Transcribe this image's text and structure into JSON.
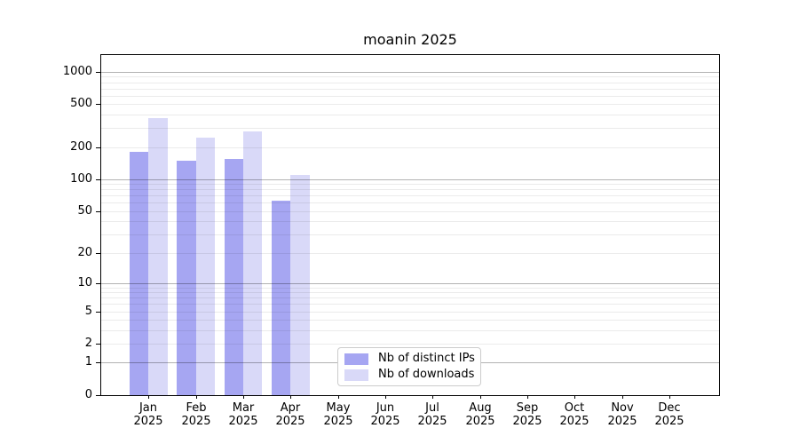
{
  "chart_data": {
    "type": "bar",
    "title": "moanin 2025",
    "categories": [
      "Jan",
      "Feb",
      "Mar",
      "Apr",
      "May",
      "Jun",
      "Jul",
      "Aug",
      "Sep",
      "Oct",
      "Nov",
      "Dec"
    ],
    "year": "2025",
    "series": [
      {
        "name": "Nb of distinct IPs",
        "color": "#a6a6f2",
        "values": [
          180,
          150,
          155,
          63,
          0,
          0,
          0,
          0,
          0,
          0,
          0,
          0
        ]
      },
      {
        "name": "Nb of downloads",
        "color": "#d9d9f8",
        "values": [
          375,
          245,
          280,
          110,
          0,
          0,
          0,
          0,
          0,
          0,
          0,
          0
        ]
      }
    ],
    "yscale": "log10(value+1)",
    "yticks": [
      0,
      1,
      2,
      5,
      10,
      20,
      50,
      100,
      200,
      500,
      1000
    ],
    "ylim": [
      0,
      1433
    ],
    "grid": "horizontal, minor 2-9 per decade, major at powers of 10, drawn over bars",
    "legend_position": "inside bottom-center",
    "bar_layout": "pairs: distinct-IPs bar left of month tick, downloads bar right of month tick"
  },
  "colors": {
    "major_gridline": "#aeaeae",
    "minor_gridline": "#ececec",
    "axis": "#000000",
    "legend_border": "#cccccc",
    "background": "#ffffff"
  }
}
